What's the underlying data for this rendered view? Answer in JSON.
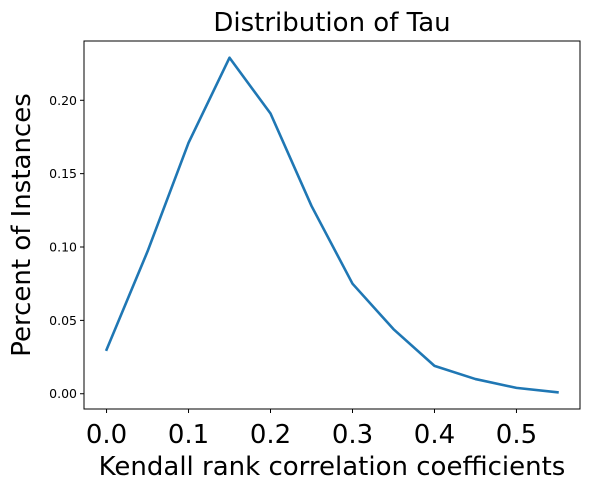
{
  "chart_data": {
    "type": "line",
    "title": "Distribution of Tau",
    "xlabel": "Kendall rank correlation coefficients",
    "ylabel": "Percent of Instances",
    "x": [
      0.0,
      0.05,
      0.1,
      0.15,
      0.2,
      0.25,
      0.3,
      0.35,
      0.4,
      0.45,
      0.5,
      0.55
    ],
    "series": [
      {
        "values": [
          0.03,
          0.097,
          0.171,
          0.229,
          0.191,
          0.128,
          0.075,
          0.044,
          0.019,
          0.01,
          0.004,
          0.001
        ],
        "color": "#1f77b4"
      }
    ],
    "xticks": [
      "0.0",
      "0.1",
      "0.2",
      "0.3",
      "0.4",
      "0.5"
    ],
    "yticks": [
      "0.00",
      "0.05",
      "0.10",
      "0.15",
      "0.20"
    ],
    "xlim": [
      -0.0275,
      0.5775
    ],
    "ylim": [
      -0.0104,
      0.2404
    ],
    "grid": false
  }
}
